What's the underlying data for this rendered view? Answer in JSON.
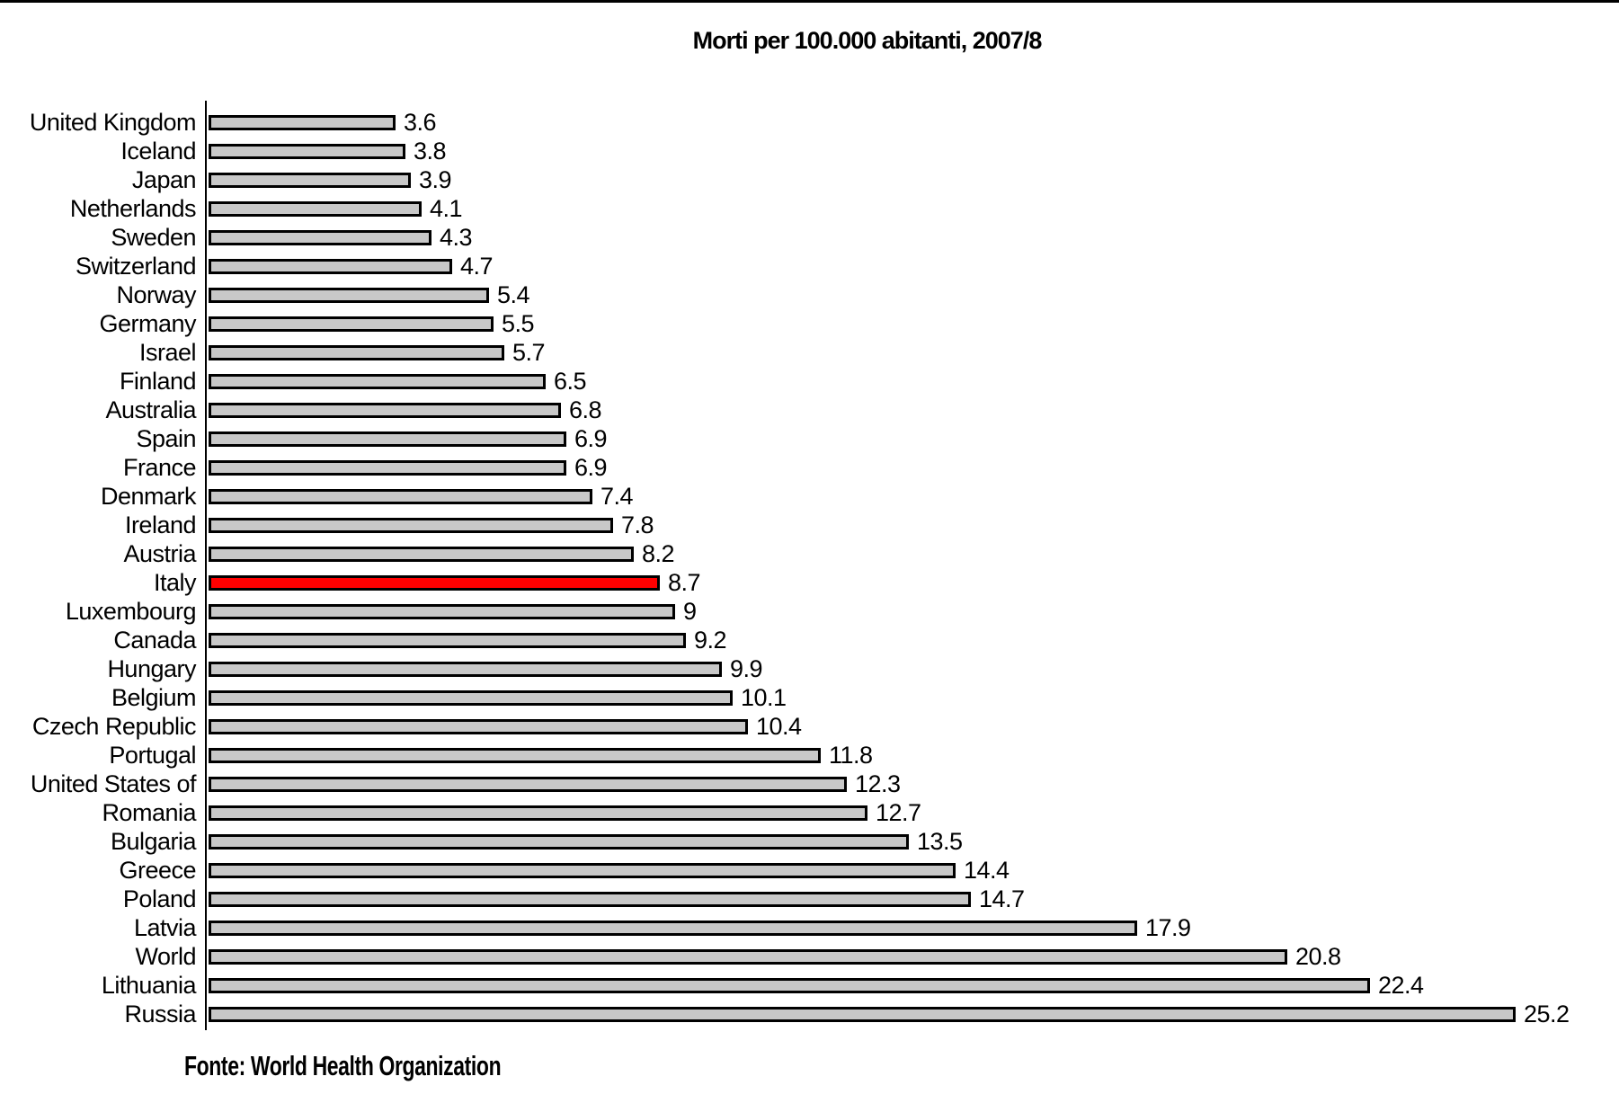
{
  "page": {
    "background": "#ffffff",
    "top_rule_color": "#000000"
  },
  "chart_data": {
    "type": "bar",
    "orientation": "horizontal",
    "title": "Morti per 100.000 abitanti, 2007/8",
    "source": "Fonte: World Health Organization",
    "xlabel": "",
    "ylabel": "",
    "xlim": [
      0,
      26
    ],
    "grid": false,
    "legend": false,
    "bar_color": "#c8c8c8",
    "bar_border_color": "#000000",
    "highlight": {
      "category": "Italy",
      "color": "#ff0000"
    },
    "categories": [
      "United Kingdom",
      "Iceland",
      "Japan",
      "Netherlands",
      "Sweden",
      "Switzerland",
      "Norway",
      "Germany",
      "Israel",
      "Finland",
      "Australia",
      "Spain",
      "France",
      "Denmark",
      "Ireland",
      "Austria",
      "Italy",
      "Luxembourg",
      "Canada",
      "Hungary",
      "Belgium",
      "Czech Republic",
      "Portugal",
      "United States of",
      "Romania",
      "Bulgaria",
      "Greece",
      "Poland",
      "Latvia",
      "World",
      "Lithuania",
      "Russia"
    ],
    "values": [
      3.6,
      3.8,
      3.9,
      4.1,
      4.3,
      4.7,
      5.4,
      5.5,
      5.7,
      6.5,
      6.8,
      6.9,
      6.9,
      7.4,
      7.8,
      8.2,
      8.7,
      9,
      9.2,
      9.9,
      10.1,
      10.4,
      11.8,
      12.3,
      12.7,
      13.5,
      14.4,
      14.7,
      17.9,
      20.8,
      22.4,
      25.2
    ],
    "value_labels": [
      "3.6",
      "3.8",
      "3.9",
      "4.1",
      "4.3",
      "4.7",
      "5.4",
      "5.5",
      "5.7",
      "6.5",
      "6.8",
      "6.9",
      "6.9",
      "7.4",
      "7.8",
      "8.2",
      "8.7",
      "9",
      "9.2",
      "9.9",
      "10.1",
      "10.4",
      "11.8",
      "12.3",
      "12.7",
      "13.5",
      "14.4",
      "14.7",
      "17.9",
      "20.8",
      "22.4",
      "25.2"
    ]
  }
}
